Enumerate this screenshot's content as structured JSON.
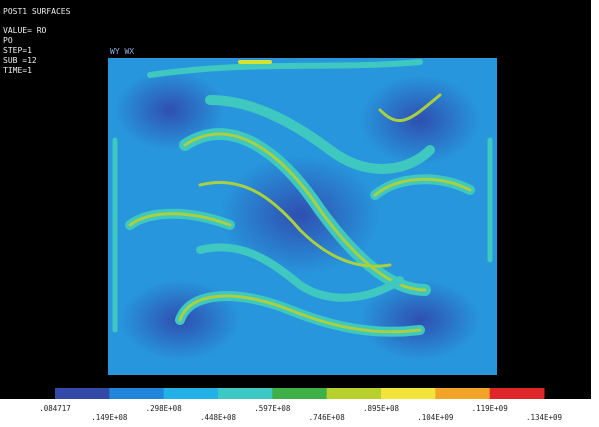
{
  "header": {
    "title": "POST1 SURFACES",
    "lines": [
      "VALUE= RO",
      "PO",
      "STEP=1",
      "SUB =12",
      "TIME=1"
    ]
  },
  "triad": {
    "label": "WY WX"
  },
  "legend": {
    "colors": [
      "#3349a6",
      "#1f86dc",
      "#22b2e8",
      "#3cc8c4",
      "#3fb048",
      "#b8d02c",
      "#f2e43a",
      "#f2a426",
      "#e0262a"
    ],
    "labels": [
      ".084717",
      ".149E+08",
      ".298E+08",
      ".448E+08",
      ".597E+08",
      ".746E+08",
      ".895E+08",
      ".104E+09",
      ".119E+09",
      ".134E+09"
    ]
  }
}
